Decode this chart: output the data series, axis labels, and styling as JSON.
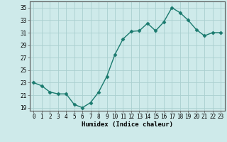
{
  "x": [
    0,
    1,
    2,
    3,
    4,
    5,
    6,
    7,
    8,
    9,
    10,
    11,
    12,
    13,
    14,
    15,
    16,
    17,
    18,
    19,
    20,
    21,
    22,
    23
  ],
  "y": [
    23.0,
    22.5,
    21.5,
    21.2,
    21.2,
    19.5,
    19.0,
    19.8,
    21.5,
    24.0,
    27.5,
    30.0,
    31.2,
    31.3,
    32.5,
    31.3,
    32.7,
    35.0,
    34.2,
    33.0,
    31.5,
    30.5,
    31.0,
    31.0
  ],
  "line_color": "#1a7a6e",
  "marker": "D",
  "marker_size": 2.5,
  "bg_color": "#ceeaea",
  "grid_color": "#aacfcf",
  "xlabel": "Humidex (Indice chaleur)",
  "ylim": [
    18.5,
    36
  ],
  "yticks": [
    19,
    21,
    23,
    25,
    27,
    29,
    31,
    33,
    35
  ],
  "xlim": [
    -0.5,
    23.5
  ],
  "xlabel_fontsize": 6.5,
  "tick_fontsize": 5.5,
  "line_width": 1.0
}
